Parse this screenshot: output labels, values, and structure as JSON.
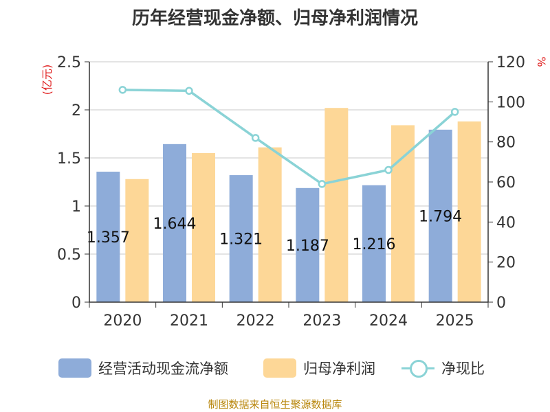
{
  "chart_data": {
    "type": "bar+line",
    "title": "历年经营现金净额、归母净利润情况",
    "categories": [
      "2020",
      "2021",
      "2022",
      "2023",
      "2024",
      "2025"
    ],
    "series": [
      {
        "name": "经营活动现金流净额",
        "type": "bar",
        "axis": "left",
        "color": "#8eacd9",
        "values": [
          1.357,
          1.644,
          1.321,
          1.187,
          1.216,
          1.794
        ],
        "labels": [
          "1.357",
          "1.644",
          "1.321",
          "1.187",
          "1.216",
          "1.794"
        ]
      },
      {
        "name": "归母净利润",
        "type": "bar",
        "axis": "left",
        "color": "#fdd797",
        "values": [
          1.28,
          1.55,
          1.61,
          2.02,
          1.84,
          1.88
        ]
      },
      {
        "name": "净现比",
        "type": "line",
        "axis": "right",
        "color": "#8ad3d6",
        "values": [
          106,
          105.5,
          82,
          59,
          66,
          95
        ]
      }
    ],
    "y_left": {
      "label": "(亿元)",
      "range": [
        0,
        2.5
      ],
      "ticks": [
        "0",
        "0.5",
        "1",
        "1.5",
        "2",
        "2.5"
      ]
    },
    "y_right": {
      "label": "%",
      "range": [
        0,
        120
      ],
      "ticks": [
        "0",
        "20",
        "40",
        "60",
        "80",
        "100",
        "120"
      ]
    },
    "grid": true,
    "legend_position": "bottom"
  },
  "source": "制图数据来自恒生聚源数据库"
}
